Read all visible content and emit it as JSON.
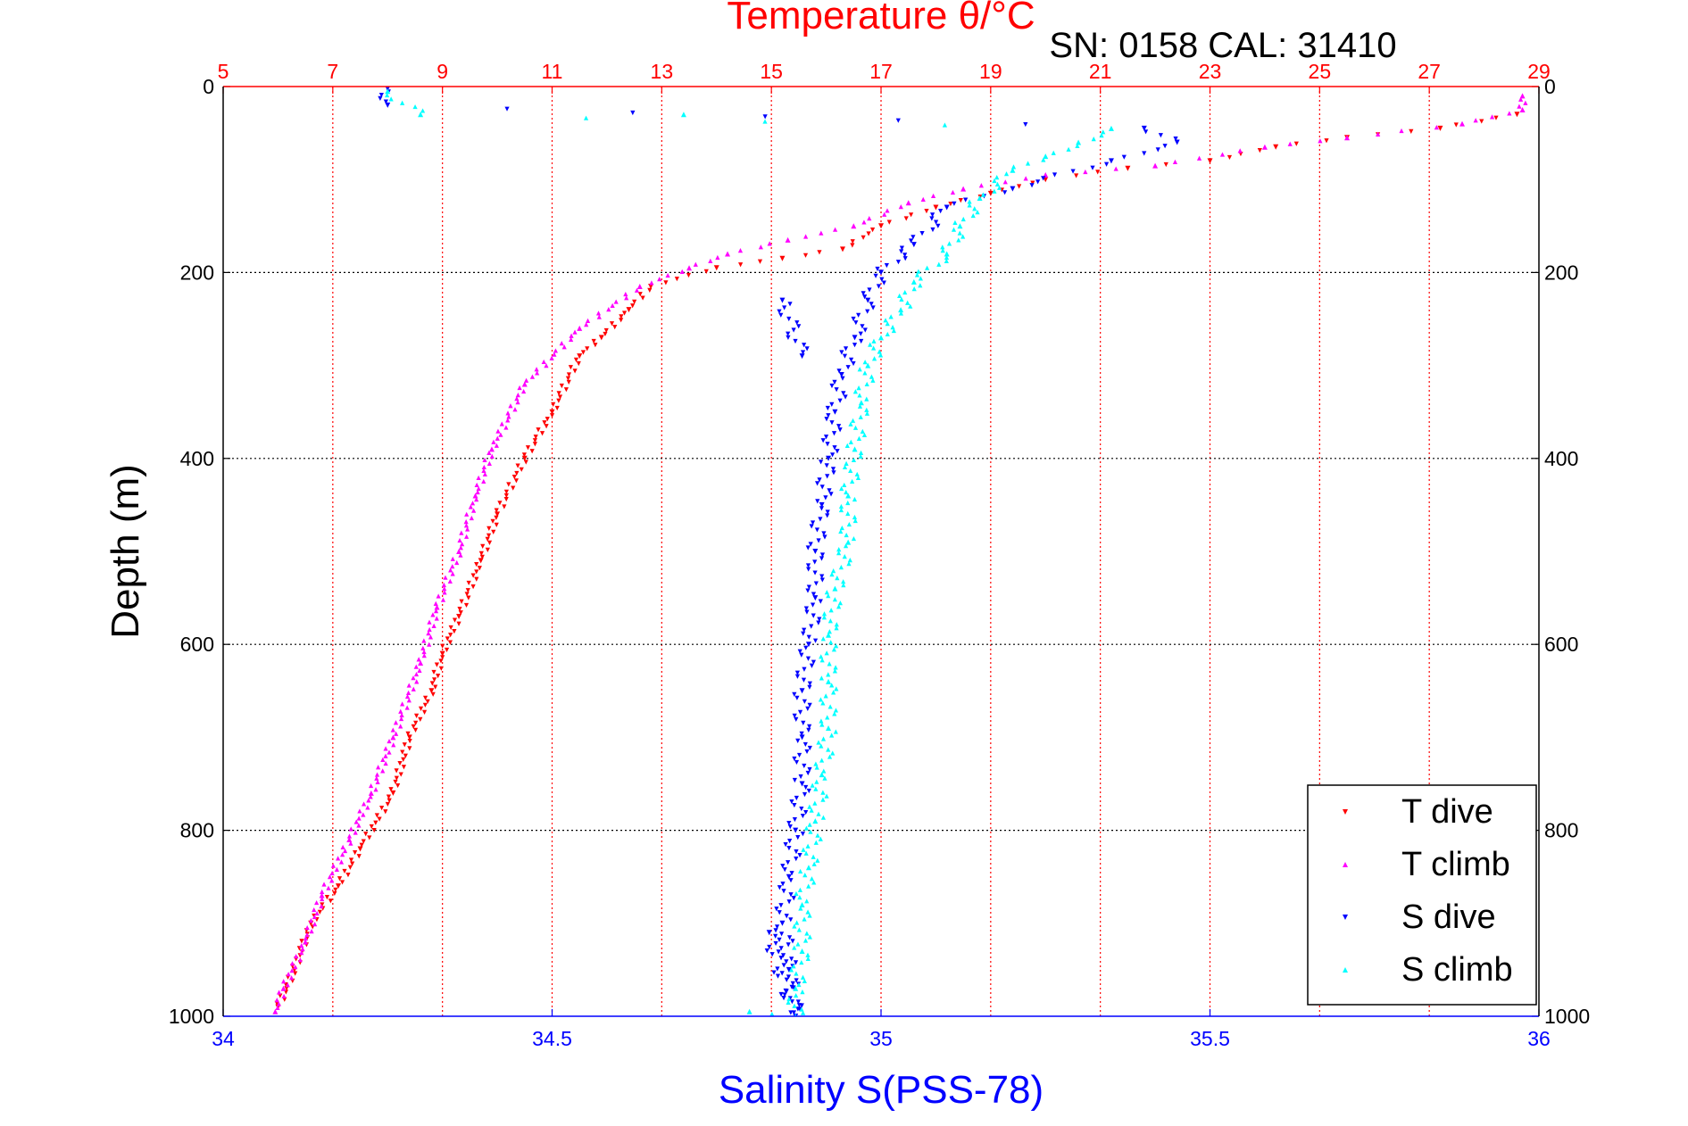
{
  "chart_data": {
    "type": "scatter",
    "title": "Temperature θ/°C",
    "subtitle": "SN: 0158  CAL: 31410",
    "xlabel": "Salinity S(PSS-78)",
    "ylabel": "Depth (m)",
    "x_top_label": "Temperature θ/°C",
    "xlim_salinity": [
      34,
      36
    ],
    "xlim_temperature": [
      5,
      29
    ],
    "ylim_depth": [
      0,
      1000
    ],
    "y_reversed": true,
    "salinity_ticks": [
      34,
      34.5,
      35,
      35.5,
      36
    ],
    "temperature_ticks": [
      5,
      7,
      9,
      11,
      13,
      15,
      17,
      19,
      21,
      23,
      25,
      27,
      29
    ],
    "depth_ticks": [
      0,
      200,
      400,
      600,
      800,
      1000
    ],
    "grid": true,
    "legend_position": "bottom-right",
    "colors": {
      "temperature_axis": "#ff0000",
      "salinity_axis": "#0000ff",
      "t_dive": "#ff0000",
      "t_climb": "#ff00ff",
      "s_dive": "#0000ff",
      "s_climb": "#00ffff"
    },
    "series": [
      {
        "name": "T dive",
        "axis": "temperature",
        "marker": "triangle-down",
        "color": "#ff0000",
        "points": [
          [
            28.6,
            30
          ],
          [
            27.2,
            45
          ],
          [
            25.5,
            55
          ],
          [
            24.2,
            65
          ],
          [
            23,
            80
          ],
          [
            21.5,
            88
          ],
          [
            20,
            100
          ],
          [
            19,
            115
          ],
          [
            18,
            130
          ],
          [
            17,
            150
          ],
          [
            16.3,
            175
          ],
          [
            15.2,
            185
          ],
          [
            14,
            195
          ],
          [
            12.8,
            215
          ],
          [
            12.4,
            240
          ],
          [
            11.9,
            270
          ],
          [
            11.5,
            290
          ],
          [
            11,
            350
          ],
          [
            10.5,
            400
          ],
          [
            10,
            460
          ],
          [
            9.7,
            510
          ],
          [
            9.3,
            570
          ],
          [
            9,
            610
          ],
          [
            8.8,
            650
          ],
          [
            8.4,
            700
          ],
          [
            8.1,
            760
          ],
          [
            7.5,
            820
          ],
          [
            7.1,
            860
          ],
          [
            6.6,
            900
          ],
          [
            6.3,
            950
          ],
          [
            6,
            990
          ]
        ]
      },
      {
        "name": "T climb",
        "axis": "temperature",
        "marker": "triangle-up",
        "color": "#ff00ff",
        "points": [
          [
            28.7,
            10
          ],
          [
            28.7,
            25
          ],
          [
            27.6,
            40
          ],
          [
            25.5,
            55
          ],
          [
            24,
            65
          ],
          [
            22,
            85
          ],
          [
            20,
            95
          ],
          [
            18.5,
            110
          ],
          [
            17.5,
            125
          ],
          [
            16.5,
            150
          ],
          [
            15.3,
            165
          ],
          [
            14.2,
            180
          ],
          [
            13.5,
            195
          ],
          [
            12.6,
            215
          ],
          [
            11.5,
            260
          ],
          [
            10.5,
            320
          ],
          [
            9.9,
            390
          ],
          [
            9.6,
            440
          ],
          [
            9.3,
            500
          ],
          [
            8.9,
            560
          ],
          [
            8.6,
            620
          ],
          [
            8.1,
            700
          ],
          [
            7.7,
            760
          ],
          [
            7.3,
            810
          ],
          [
            6.8,
            870
          ],
          [
            6.5,
            920
          ],
          [
            6.1,
            970
          ],
          [
            5.95,
            995
          ]
        ]
      },
      {
        "name": "S dive",
        "axis": "salinity",
        "marker": "triangle-down",
        "color": "#0000ff",
        "points": [
          [
            34.25,
            2
          ],
          [
            34.25,
            20
          ],
          [
            35.4,
            45
          ],
          [
            35.45,
            60
          ],
          [
            35.35,
            80
          ],
          [
            35.2,
            110
          ],
          [
            35.1,
            130
          ],
          [
            35.05,
            170
          ],
          [
            35.0,
            200
          ],
          [
            34.98,
            230
          ],
          [
            34.96,
            270
          ],
          [
            34.94,
            310
          ],
          [
            34.93,
            350
          ],
          [
            34.92,
            400
          ],
          [
            34.91,
            450
          ],
          [
            34.9,
            500
          ],
          [
            34.9,
            550
          ],
          [
            34.89,
            600
          ],
          [
            34.88,
            650
          ],
          [
            34.88,
            700
          ],
          [
            34.88,
            750
          ],
          [
            34.87,
            800
          ],
          [
            34.86,
            850
          ],
          [
            34.85,
            900
          ],
          [
            34.86,
            950
          ],
          [
            34.87,
            1000
          ],
          [
            34.83,
            910
          ],
          [
            34.85,
            230
          ],
          [
            34.88,
            290
          ]
        ]
      },
      {
        "name": "S climb",
        "axis": "salinity",
        "marker": "triangle-up",
        "color": "#00ffff",
        "points": [
          [
            34.25,
            5
          ],
          [
            34.3,
            30
          ],
          [
            35.35,
            45
          ],
          [
            35.3,
            60
          ],
          [
            35.25,
            75
          ],
          [
            35.2,
            90
          ],
          [
            35.15,
            120
          ],
          [
            35.12,
            150
          ],
          [
            35.1,
            180
          ],
          [
            35.05,
            210
          ],
          [
            35.03,
            240
          ],
          [
            35.0,
            270
          ],
          [
            34.98,
            300
          ],
          [
            34.97,
            340
          ],
          [
            34.96,
            390
          ],
          [
            34.95,
            440
          ],
          [
            34.95,
            490
          ],
          [
            34.93,
            540
          ],
          [
            34.92,
            590
          ],
          [
            34.92,
            640
          ],
          [
            34.92,
            690
          ],
          [
            34.91,
            740
          ],
          [
            34.9,
            790
          ],
          [
            34.89,
            840
          ],
          [
            34.88,
            880
          ],
          [
            34.88,
            930
          ],
          [
            34.87,
            970
          ],
          [
            34.87,
            1000
          ],
          [
            34.8,
            995
          ],
          [
            34.7,
            30
          ]
        ]
      }
    ]
  }
}
